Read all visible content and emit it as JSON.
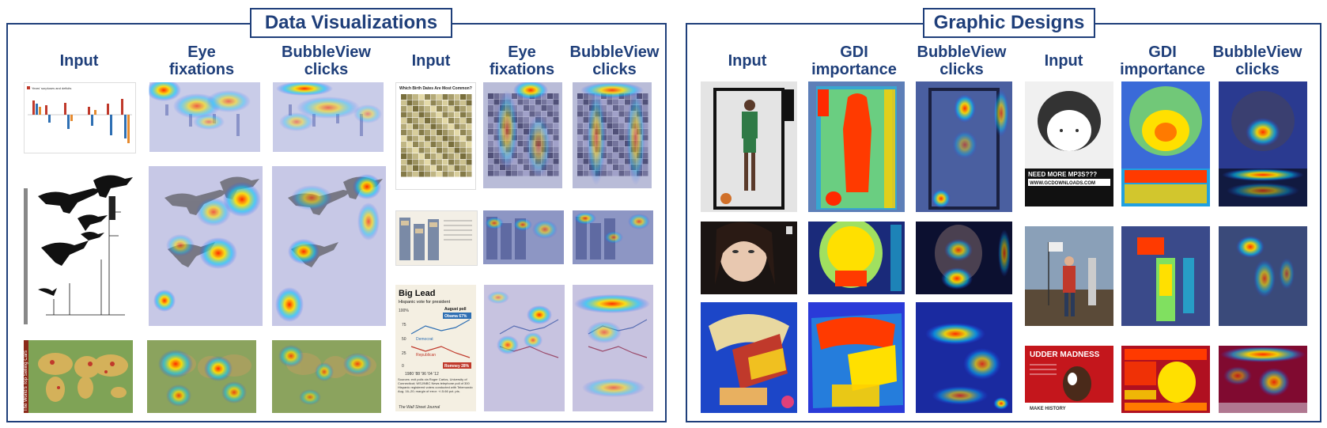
{
  "panels": {
    "left": {
      "title": "Data Visualizations",
      "col_headers": [
        {
          "line1": "Input",
          "line2": ""
        },
        {
          "line1": "Eye",
          "line2": "fixations"
        },
        {
          "line1": "BubbleView",
          "line2": "clicks"
        },
        {
          "line1": "Input",
          "line2": ""
        },
        {
          "line1": "Eye",
          "line2": "fixations"
        },
        {
          "line1": "BubbleView",
          "line2": "clicks"
        }
      ],
      "inner_text": {
        "chart1_title": "Years' surpluses and deficits",
        "chart2_title": "Which Birth Dates Are Most Common?",
        "chart3_title": "Big Lead",
        "chart3_subtitle": "Hispanic vote for president",
        "chart3_aug": "August poll",
        "chart3_obama": "Obama 67%",
        "chart3_romney": "Romney 28%",
        "chart3_dem": "Democrat",
        "chart3_rep": "Republican",
        "chart3_years": "1980  '88  '96  '04  '12",
        "chart3_y100": "100%",
        "chart3_y75": "75",
        "chart3_y50": "50",
        "chart3_y25": "25",
        "chart3_y0": "0",
        "chart3_source": "Sources: exit polls via Roger Carlos, University of Connecticut; WSJ/NBC News telephone poll of 300 Hispanic registered voters conducted with Telemundo Aug. 16–20; margin of error: +/-5.66 pct. pts.",
        "chart3_wsj": "The Wall Street Journal",
        "map_title": "The World's Top Selling Cars"
      }
    },
    "right": {
      "title": "Graphic Designs",
      "col_headers": [
        {
          "line1": "Input",
          "line2": ""
        },
        {
          "line1": "GDI",
          "line2": "importance"
        },
        {
          "line1": "BubbleView",
          "line2": "clicks"
        },
        {
          "line1": "Input",
          "line2": ""
        },
        {
          "line1": "GDI",
          "line2": "importance"
        },
        {
          "line1": "BubbleView",
          "line2": "clicks"
        }
      ],
      "inner_text": {
        "mp3_line1": "NEED MORE MP3S???",
        "mp3_line2": "WWW.GCDOWNLOADS.COM",
        "udder_title": "UDDER MADNESS",
        "makehistory": "MAKE   HISTORY"
      }
    }
  },
  "colors": {
    "frame": "#1f3f7a",
    "heat_hot": "#ff2a00",
    "heat_mid": "#ffe000",
    "heat_cool": "#00c8ff",
    "heat_base": "#2a3cff"
  }
}
